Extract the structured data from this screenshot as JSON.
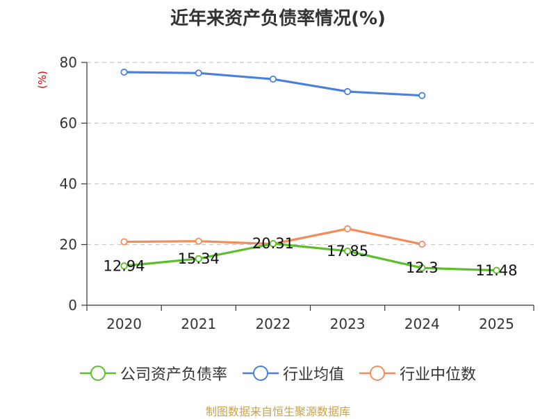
{
  "title": "近年来资产负债率情况(%)",
  "y_unit": "(%)",
  "source": "制图数据来自恒生聚源数据库",
  "chart_data": {
    "type": "line",
    "title": "近年来资产负债率情况(%)",
    "ylabel": "(%)",
    "categories": [
      "2020",
      "2021",
      "2022",
      "2023",
      "2024",
      "2025"
    ],
    "ylim": [
      0,
      80
    ],
    "yticks": [
      0,
      20,
      40,
      60,
      80
    ],
    "grid": true,
    "legend_position": "bottom",
    "series": [
      {
        "name": "公司资产负债率",
        "color": "#5cbf2a",
        "values": [
          12.94,
          15.34,
          20.31,
          17.85,
          12.3,
          11.48
        ],
        "labels": [
          "12.94",
          "15.34",
          "20.31",
          "17.85",
          "12.3",
          "11.48"
        ]
      },
      {
        "name": "行业均值",
        "color": "#4a7fdc",
        "values": [
          76.8,
          76.5,
          74.5,
          70.4,
          69.1,
          null
        ]
      },
      {
        "name": "行业中位数",
        "color": "#f28c5a",
        "values": [
          20.9,
          21.1,
          20.2,
          25.2,
          20.1,
          null
        ]
      }
    ]
  }
}
